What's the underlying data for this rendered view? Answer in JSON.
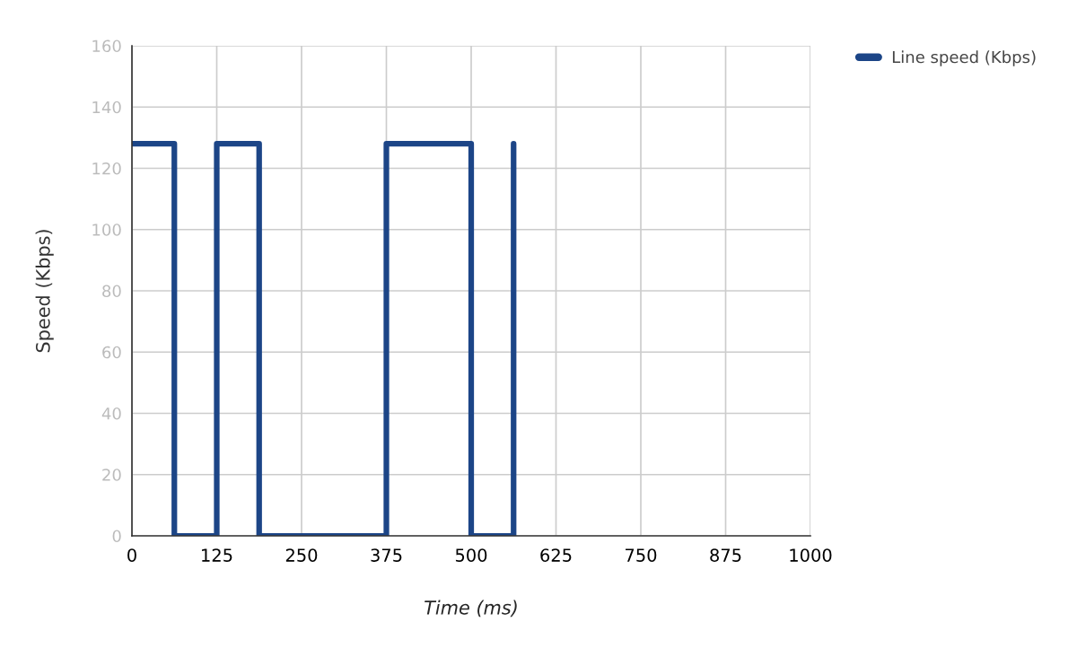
{
  "chart_data": {
    "type": "step",
    "xlabel": "Time (ms)",
    "ylabel": "Speed (Kbps)",
    "series": [
      {
        "name": "Line speed (Kbps)",
        "color": "#1c4587",
        "x": [
          0,
          62.5,
          125,
          187.5,
          375,
          500,
          562.5
        ],
        "values": [
          128,
          0,
          128,
          0,
          128,
          0,
          128
        ]
      }
    ],
    "xlim": [
      0,
      1000
    ],
    "xticks": [
      0,
      125,
      250,
      375,
      500,
      625,
      750,
      875,
      1000
    ],
    "ylim": [
      0,
      160
    ],
    "yticks": [
      0,
      20,
      40,
      60,
      80,
      100,
      120,
      140,
      160
    ],
    "grid": true,
    "legend": "top right"
  }
}
